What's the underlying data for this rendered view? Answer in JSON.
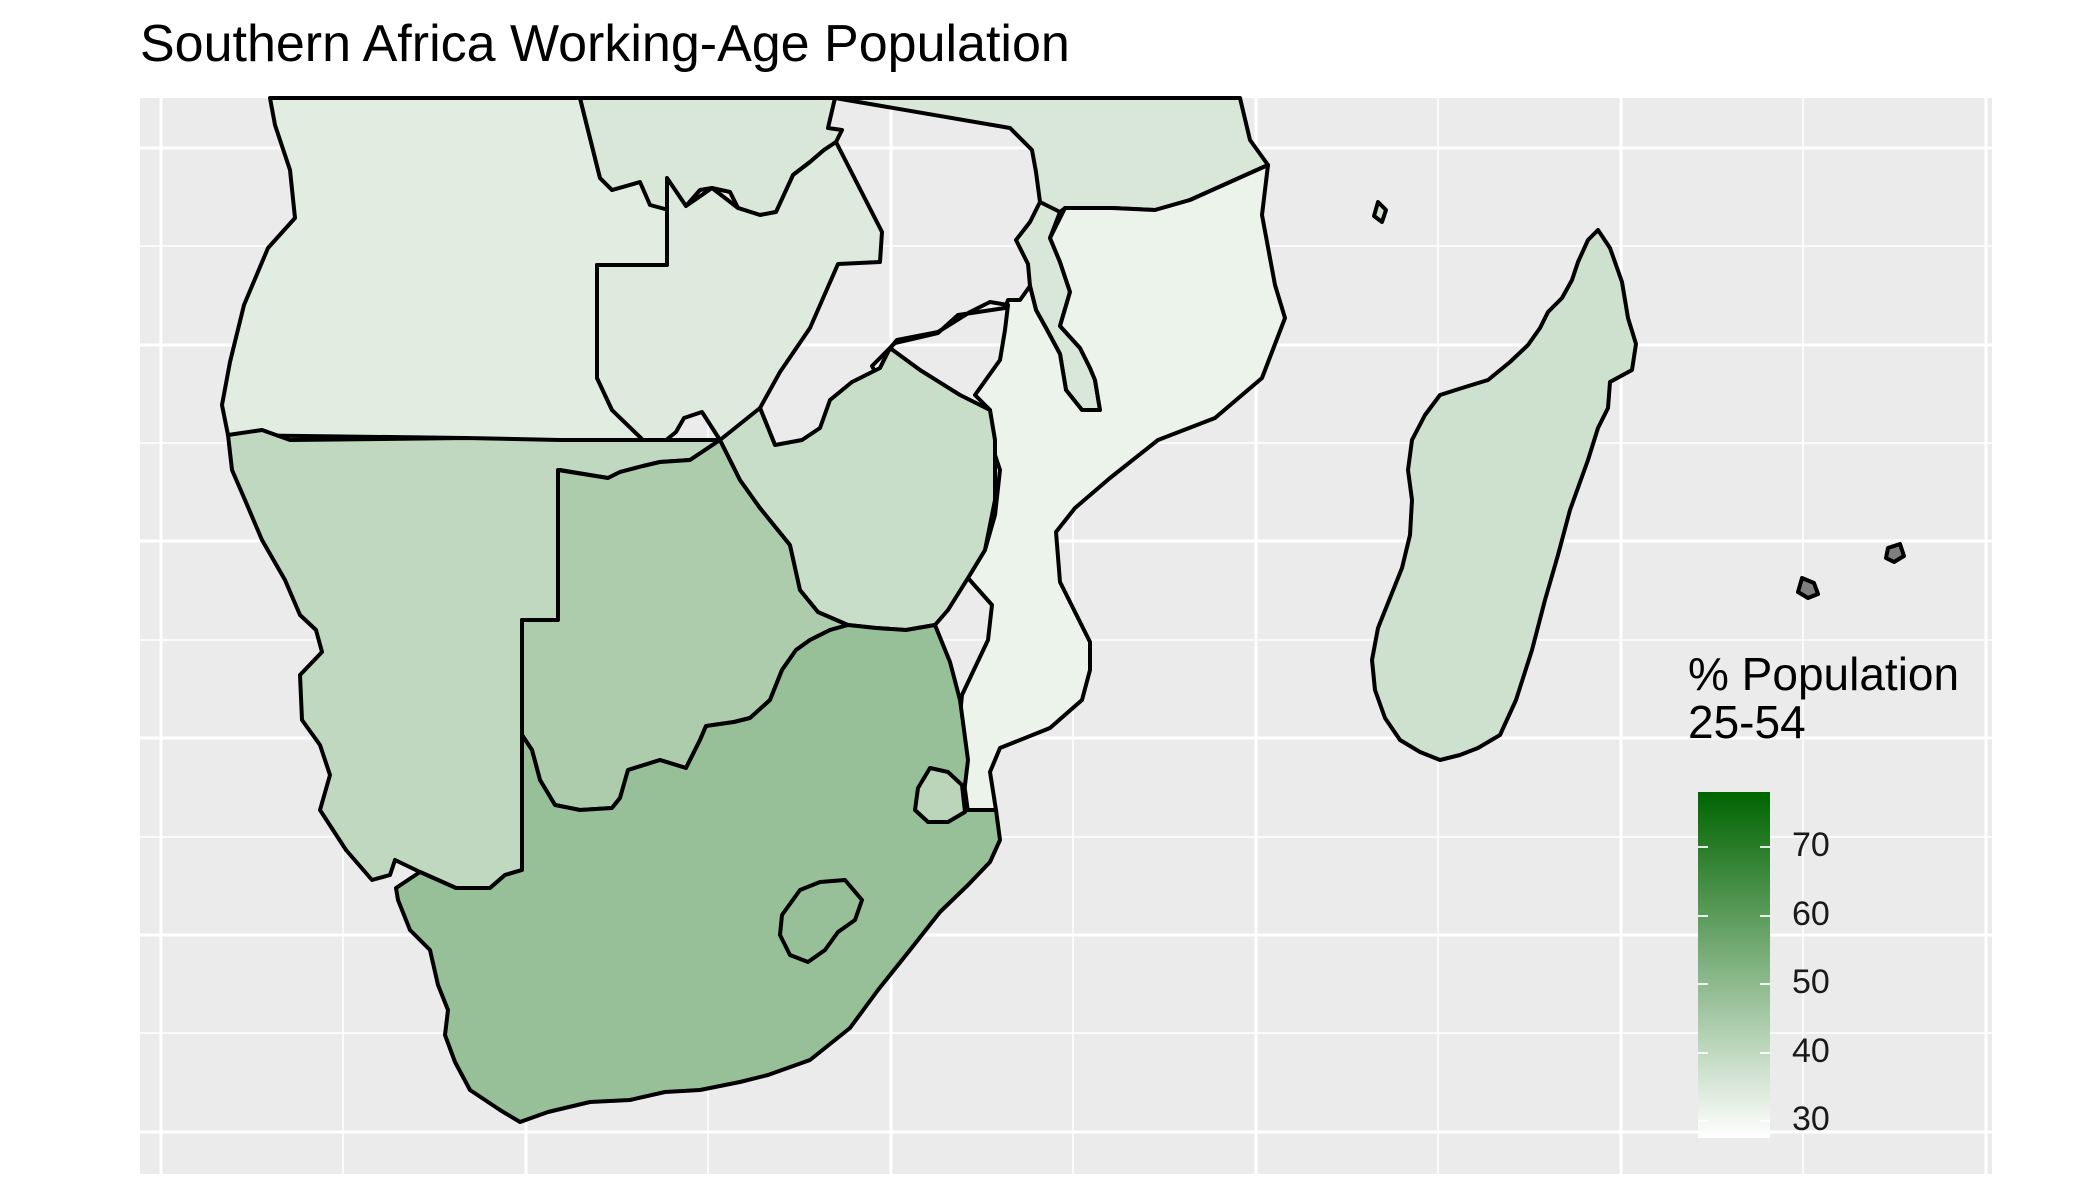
{
  "title": "Southern Africa Working-Age Population",
  "legend": {
    "title_lines": [
      "% Population",
      "25-54"
    ],
    "ticks": [
      30,
      40,
      50,
      60,
      70
    ],
    "range": [
      25,
      77
    ],
    "low_color": "#ffffff",
    "high_color": "#006400",
    "placement": "bottom-right"
  },
  "map": {
    "panel_background": "#ebebeb",
    "grid": true,
    "border_color": "#000000",
    "missing_color": "#7f7f7f"
  },
  "chart_data": {
    "type": "choropleth",
    "title": "Southern Africa Working-Age Population",
    "legend_title": "% Population 25-54",
    "scale": {
      "min": 25,
      "max": 77,
      "breaks": [
        30,
        40,
        50,
        60,
        70
      ]
    },
    "regions": [
      {
        "id": "angola",
        "value": 31
      },
      {
        "id": "drc",
        "value": 33
      },
      {
        "id": "zambia",
        "value": 32
      },
      {
        "id": "tanzania",
        "value": 33
      },
      {
        "id": "malawi",
        "value": 33
      },
      {
        "id": "mozambique",
        "value": 29
      },
      {
        "id": "namibia",
        "value": 38
      },
      {
        "id": "botswana",
        "value": 42
      },
      {
        "id": "zimbabwe",
        "value": 36
      },
      {
        "id": "south-africa",
        "value": 46
      },
      {
        "id": "lesotho",
        "value": 46
      },
      {
        "id": "eswatini",
        "value": 39
      },
      {
        "id": "madagascar",
        "value": 35
      },
      {
        "id": "comoros",
        "value": 35
      },
      {
        "id": "mauritius",
        "value": null
      },
      {
        "id": "reunion",
        "value": null
      }
    ]
  }
}
